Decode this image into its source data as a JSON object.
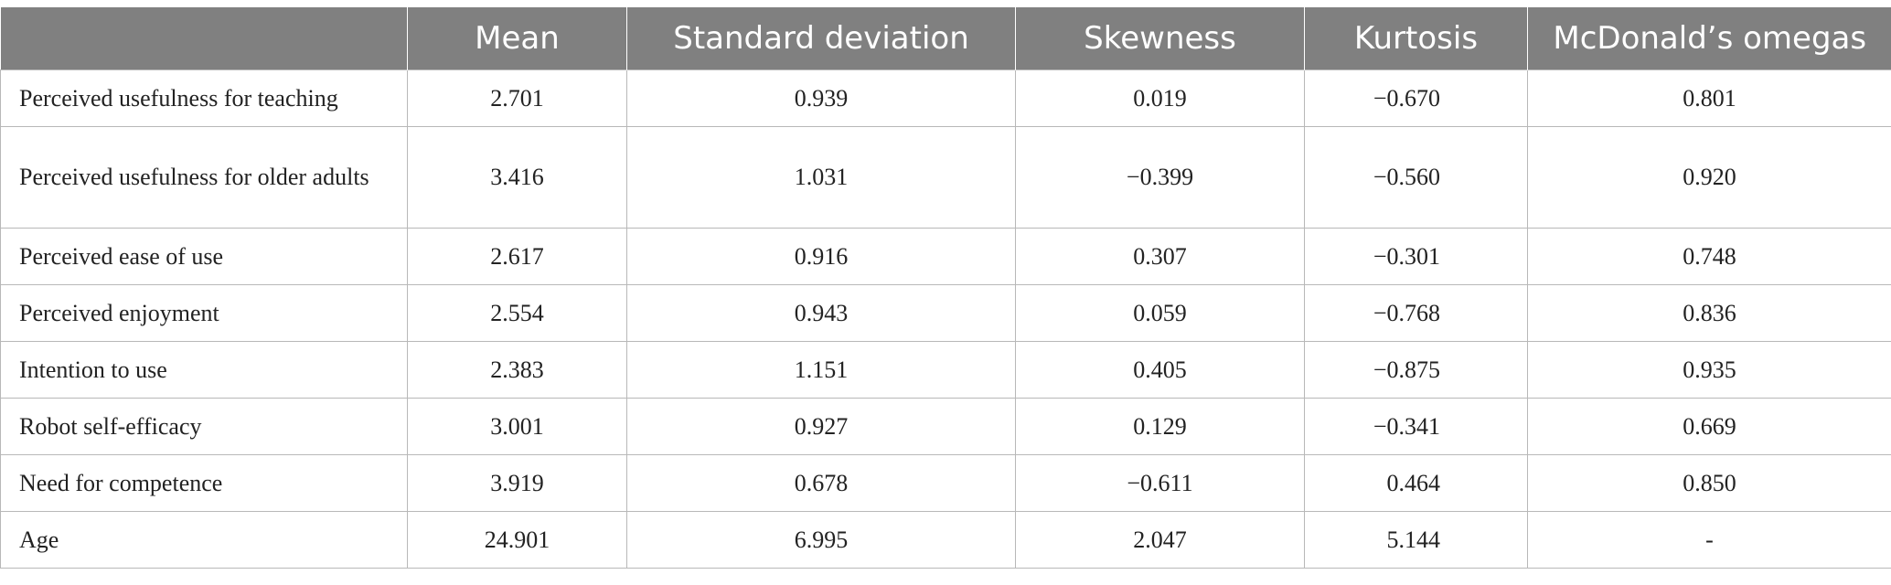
{
  "table": {
    "headers": [
      "",
      "Mean",
      "Standard deviation",
      "Skewness",
      "Kurtosis",
      "McDonald’s omegas"
    ],
    "rows": [
      {
        "label": "Perceived usefulness for teaching",
        "mean": "2.701",
        "sd": "0.939",
        "skew": "0.019",
        "kurt": "−0.670",
        "omega": "0.801"
      },
      {
        "label": "Perceived usefulness for older adults",
        "mean": "3.416",
        "sd": "1.031",
        "skew": "−0.399",
        "kurt": "−0.560",
        "omega": "0.920"
      },
      {
        "label": "Perceived ease of use",
        "mean": "2.617",
        "sd": "0.916",
        "skew": "0.307",
        "kurt": "−0.301",
        "omega": "0.748"
      },
      {
        "label": "Perceived enjoyment",
        "mean": "2.554",
        "sd": "0.943",
        "skew": "0.059",
        "kurt": "−0.768",
        "omega": "0.836"
      },
      {
        "label": "Intention to use",
        "mean": "2.383",
        "sd": "1.151",
        "skew": "0.405",
        "kurt": "−0.875",
        "omega": "0.935"
      },
      {
        "label": "Robot self-efficacy",
        "mean": "3.001",
        "sd": "0.927",
        "skew": "0.129",
        "kurt": "−0.341",
        "omega": "0.669"
      },
      {
        "label": "Need for competence",
        "mean": "3.919",
        "sd": "0.678",
        "skew": "−0.611",
        "kurt": "0.464",
        "omega": "0.850"
      },
      {
        "label": "Age",
        "mean": "24.901",
        "sd": "6.995",
        "skew": "2.047",
        "kurt": "5.144",
        "omega": "-"
      }
    ]
  },
  "colors": {
    "header_bg": "#808080",
    "header_text": "#ffffff",
    "border": "#b8b8b8"
  }
}
